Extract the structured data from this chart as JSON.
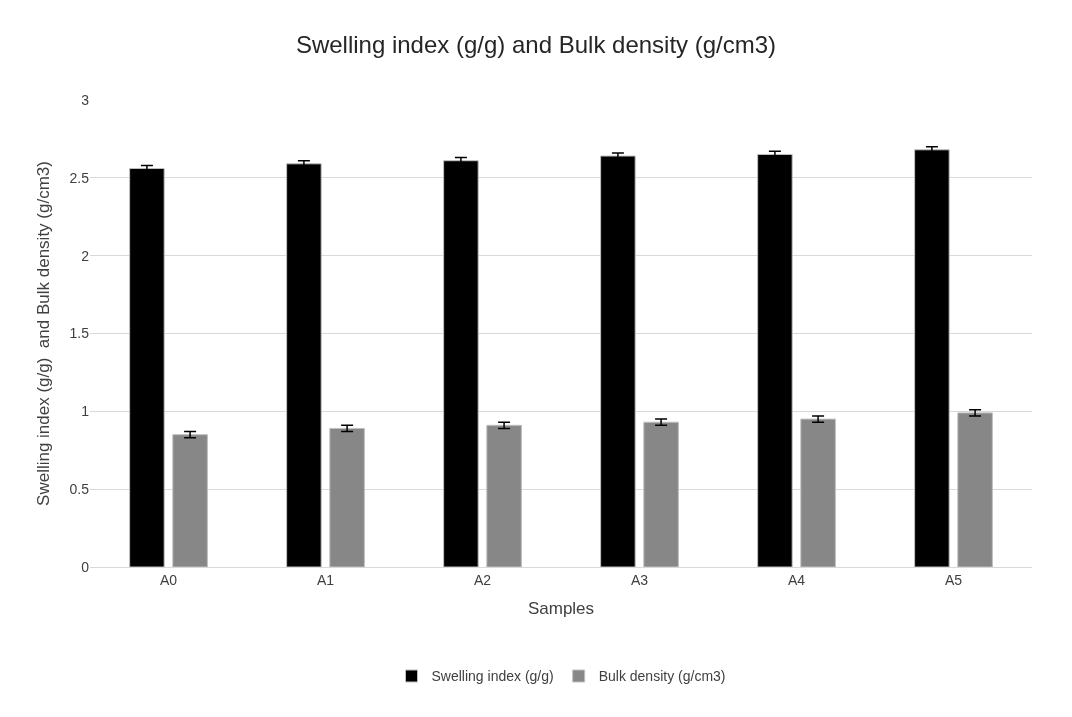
{
  "chart_data": {
    "type": "bar",
    "title": "Swelling index (g/g) and Bulk density (g/cm3)",
    "xlabel": "Samples",
    "ylabel": "Swelling index (g/g)  and Bulk density (g/cm3)",
    "categories": [
      "A0",
      "A1",
      "A2",
      "A3",
      "A4",
      "A5"
    ],
    "series": [
      {
        "name": "Swelling index (g/g)",
        "color": "#000000",
        "values": [
          2.56,
          2.59,
          2.61,
          2.64,
          2.65,
          2.68
        ],
        "errors": [
          0.02,
          0.02,
          0.02,
          0.02,
          0.02,
          0.02
        ]
      },
      {
        "name": "Bulk density (g/cm3)",
        "color": "#878787",
        "values": [
          0.85,
          0.89,
          0.91,
          0.93,
          0.95,
          0.99
        ],
        "errors": [
          0.02,
          0.02,
          0.02,
          0.02,
          0.02,
          0.02
        ]
      }
    ],
    "ylim": [
      0,
      3
    ],
    "yticks": [
      0,
      0.5,
      1,
      1.5,
      2,
      2.5,
      3
    ],
    "grid": "y",
    "legend": "bottom"
  }
}
